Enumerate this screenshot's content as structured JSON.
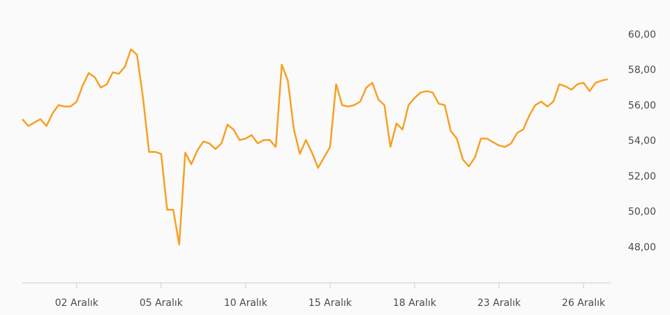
{
  "chart_data": {
    "type": "line",
    "categories": [
      null,
      null,
      null,
      null,
      null,
      null,
      null,
      null,
      null,
      "02 Aralık",
      null,
      null,
      null,
      null,
      null,
      null,
      null,
      null,
      null,
      null,
      null,
      null,
      null,
      "05 Aralık",
      null,
      null,
      null,
      null,
      null,
      null,
      null,
      null,
      null,
      null,
      null,
      null,
      null,
      "10 Aralık",
      null,
      null,
      null,
      null,
      null,
      null,
      null,
      null,
      null,
      null,
      null,
      null,
      null,
      "15 Aralık",
      null,
      null,
      null,
      null,
      null,
      null,
      null,
      null,
      null,
      null,
      null,
      null,
      null,
      "18 Aralık",
      null,
      null,
      null,
      null,
      null,
      null,
      null,
      null,
      null,
      null,
      null,
      null,
      null,
      "23 Aralık",
      null,
      null,
      null,
      null,
      null,
      null,
      null,
      null,
      null,
      null,
      null,
      null,
      null,
      "26 Aralık",
      null,
      null,
      null,
      null
    ],
    "values": [
      55.24,
      54.85,
      55.05,
      55.24,
      54.85,
      55.56,
      56.03,
      55.95,
      55.95,
      56.23,
      57.13,
      57.84,
      57.6,
      57.02,
      57.2,
      57.88,
      57.8,
      58.2,
      59.18,
      58.87,
      56.43,
      53.39,
      53.39,
      53.28,
      50.13,
      50.13,
      48.16,
      53.35,
      52.69,
      53.47,
      53.98,
      53.87,
      53.55,
      53.87,
      54.93,
      54.65,
      54.06,
      54.14,
      54.34,
      53.87,
      54.06,
      54.06,
      53.67,
      58.31,
      57.41,
      54.65,
      53.28,
      54.06,
      53.35,
      52.49,
      53.08,
      53.67,
      57.21,
      56.03,
      55.95,
      56.03,
      56.23,
      57.02,
      57.29,
      56.35,
      56.03,
      53.67,
      55.0,
      54.65,
      56.03,
      56.43,
      56.74,
      56.82,
      56.74,
      56.11,
      56.03,
      54.57,
      54.14,
      52.96,
      52.57,
      53.08,
      54.14,
      54.14,
      53.94,
      53.75,
      53.67,
      53.87,
      54.46,
      54.65,
      55.44,
      56.03,
      56.23,
      55.95,
      56.23,
      57.21,
      57.09,
      56.9,
      57.21,
      57.29,
      56.82,
      57.29,
      57.41,
      57.49
    ],
    "color": "#f7a021",
    "ylim": [
      46,
      62
    ],
    "yticks": [
      {
        "value": 48,
        "label": "48,00"
      },
      {
        "value": 50,
        "label": "50,00"
      },
      {
        "value": 52,
        "label": "52,00"
      },
      {
        "value": 54,
        "label": "54,00"
      },
      {
        "value": 56,
        "label": "56,00"
      },
      {
        "value": 58,
        "label": "58,00"
      },
      {
        "value": 60,
        "label": "60,00"
      }
    ],
    "y_axis_side": "right",
    "grid": false
  }
}
